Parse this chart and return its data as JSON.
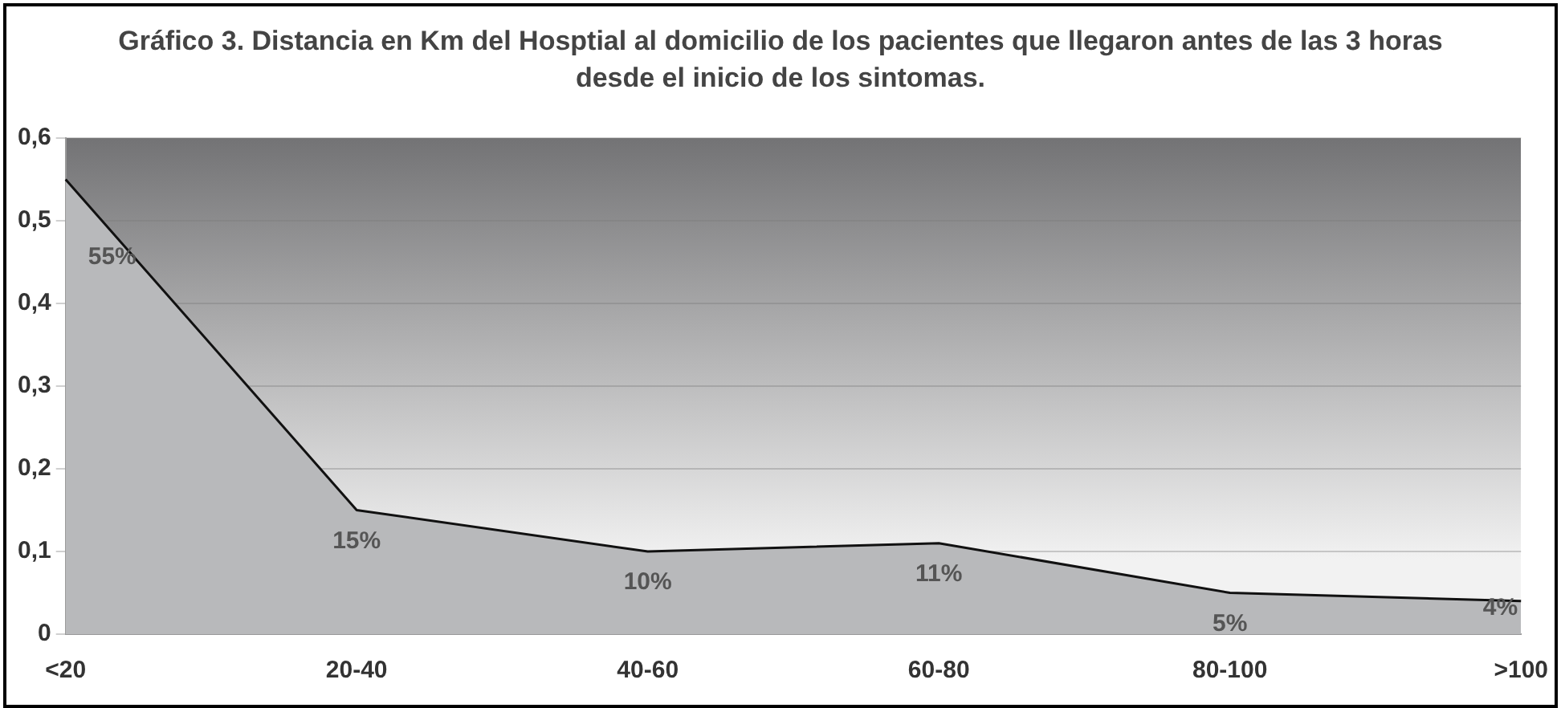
{
  "chart_data": {
    "type": "area",
    "title": "Gráfico 3. Distancia en Km del Hosptial al domicilio de los pacientes que llegaron antes de las 3 horas desde el inicio de los sintomas.",
    "categories": [
      "<20",
      "20-40",
      "40-60",
      "60-80",
      "80-100",
      ">100"
    ],
    "values": [
      0.55,
      0.15,
      0.1,
      0.11,
      0.05,
      0.04
    ],
    "value_labels": [
      "55%",
      "15%",
      "10%",
      "11%",
      "5%",
      "4%"
    ],
    "color": "#b8b9bb",
    "ylim": [
      0,
      0.6
    ],
    "yticks": [
      {
        "value": 0,
        "label": "0"
      },
      {
        "value": 0.1,
        "label": "0,1"
      },
      {
        "value": 0.2,
        "label": "0,2"
      },
      {
        "value": 0.3,
        "label": "0,3"
      },
      {
        "value": 0.4,
        "label": "0,4"
      },
      {
        "value": 0.5,
        "label": "0,5"
      },
      {
        "value": 0.6,
        "label": "0,6"
      }
    ],
    "grid": "y",
    "legend": false
  }
}
